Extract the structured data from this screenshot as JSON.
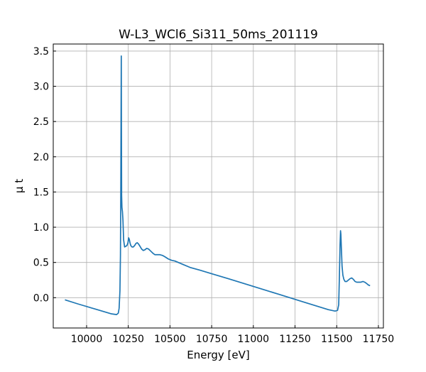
{
  "chart_data": {
    "type": "line",
    "title": "W-L3_WCl6_Si311_50ms_201119",
    "xlabel": "Energy [eV]",
    "ylabel": "μ t",
    "xlim": [
      9800,
      11780
    ],
    "ylim": [
      -0.43,
      3.6
    ],
    "xticks": [
      10000,
      10250,
      10500,
      10750,
      11000,
      11250,
      11500,
      11750
    ],
    "yticks": [
      0.0,
      0.5,
      1.0,
      1.5,
      2.0,
      2.5,
      3.0,
      3.5
    ],
    "xtick_labels": [
      "10000",
      "10250",
      "10500",
      "10750",
      "11000",
      "11250",
      "11500",
      "11750"
    ],
    "ytick_labels": [
      "0.0",
      "0.5",
      "1.0",
      "1.5",
      "2.0",
      "2.5",
      "3.0",
      "3.5"
    ],
    "grid": true,
    "series": [
      {
        "color": "#1f77b4",
        "x": [
          9870,
          9950,
          10050,
          10150,
          10180,
          10190,
          10195,
          10200,
          10203,
          10205,
          10207,
          10208,
          10209,
          10210,
          10212,
          10215,
          10218,
          10222,
          10228,
          10235,
          10242,
          10248,
          10252,
          10256,
          10260,
          10265,
          10272,
          10280,
          10288,
          10296,
          10304,
          10312,
          10320,
          10330,
          10340,
          10350,
          10360,
          10372,
          10385,
          10398,
          10410,
          10425,
          10440,
          10455,
          10470,
          10490,
          10510,
          10530,
          10550,
          10580,
          10620,
          10680,
          10750,
          10850,
          11000,
          11150,
          11300,
          11450,
          11490,
          11505,
          11512,
          11516,
          11520,
          11523,
          11525,
          11528,
          11532,
          11537,
          11543,
          11550,
          11560,
          11570,
          11580,
          11590,
          11600,
          11610,
          11620,
          11632,
          11645,
          11658,
          11668,
          11680,
          11690,
          11700
        ],
        "y": [
          -0.03,
          -0.09,
          -0.16,
          -0.23,
          -0.24,
          -0.22,
          -0.15,
          0.1,
          0.6,
          1.5,
          2.8,
          3.43,
          2.4,
          1.45,
          1.28,
          1.22,
          1.1,
          0.82,
          0.72,
          0.73,
          0.74,
          0.78,
          0.85,
          0.83,
          0.78,
          0.74,
          0.72,
          0.72,
          0.74,
          0.77,
          0.78,
          0.76,
          0.73,
          0.69,
          0.67,
          0.68,
          0.7,
          0.69,
          0.66,
          0.63,
          0.61,
          0.61,
          0.61,
          0.6,
          0.58,
          0.55,
          0.53,
          0.52,
          0.5,
          0.47,
          0.43,
          0.39,
          0.34,
          0.27,
          0.16,
          0.05,
          -0.06,
          -0.17,
          -0.19,
          -0.18,
          -0.1,
          0.3,
          0.75,
          0.95,
          0.9,
          0.7,
          0.45,
          0.32,
          0.26,
          0.23,
          0.23,
          0.25,
          0.27,
          0.28,
          0.26,
          0.23,
          0.22,
          0.22,
          0.22,
          0.23,
          0.22,
          0.2,
          0.18,
          0.17
        ]
      }
    ]
  }
}
